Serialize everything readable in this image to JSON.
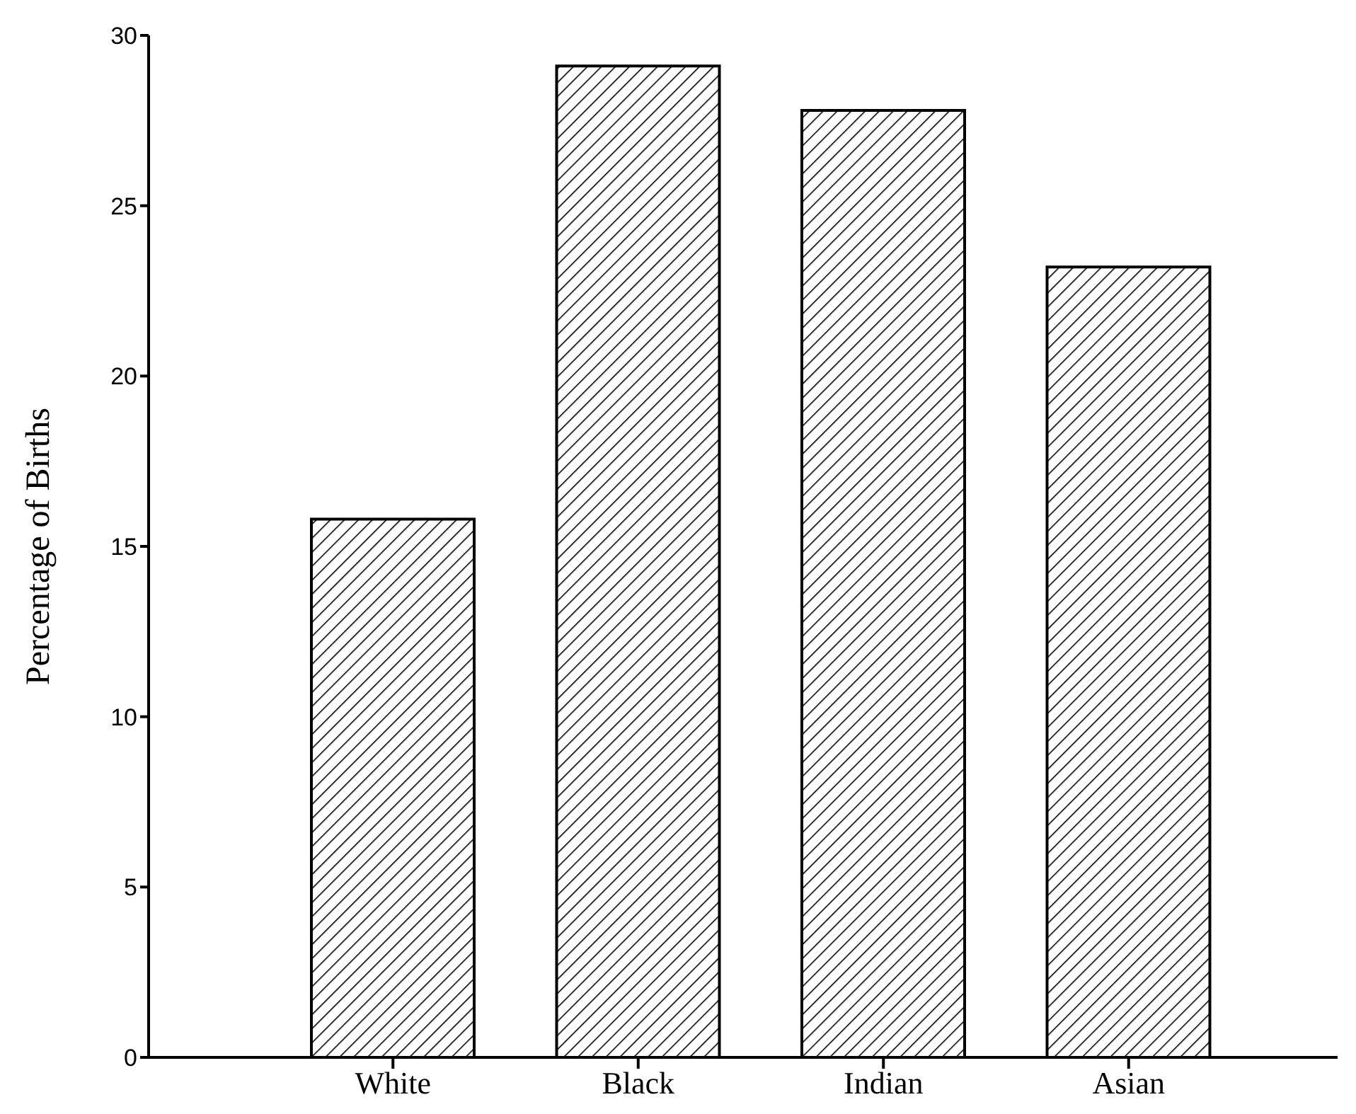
{
  "chart_data": {
    "type": "bar",
    "ylabel": "Percentage of Births",
    "categories": [
      "White",
      "Black",
      "Indian",
      "Asian"
    ],
    "values": [
      15.8,
      29.1,
      27.8,
      23.2
    ],
    "color": "#000000",
    "ylim": [
      0,
      30
    ],
    "yticks": [
      0,
      5,
      10,
      15,
      20,
      25,
      30
    ],
    "grid": false,
    "legend": false
  }
}
